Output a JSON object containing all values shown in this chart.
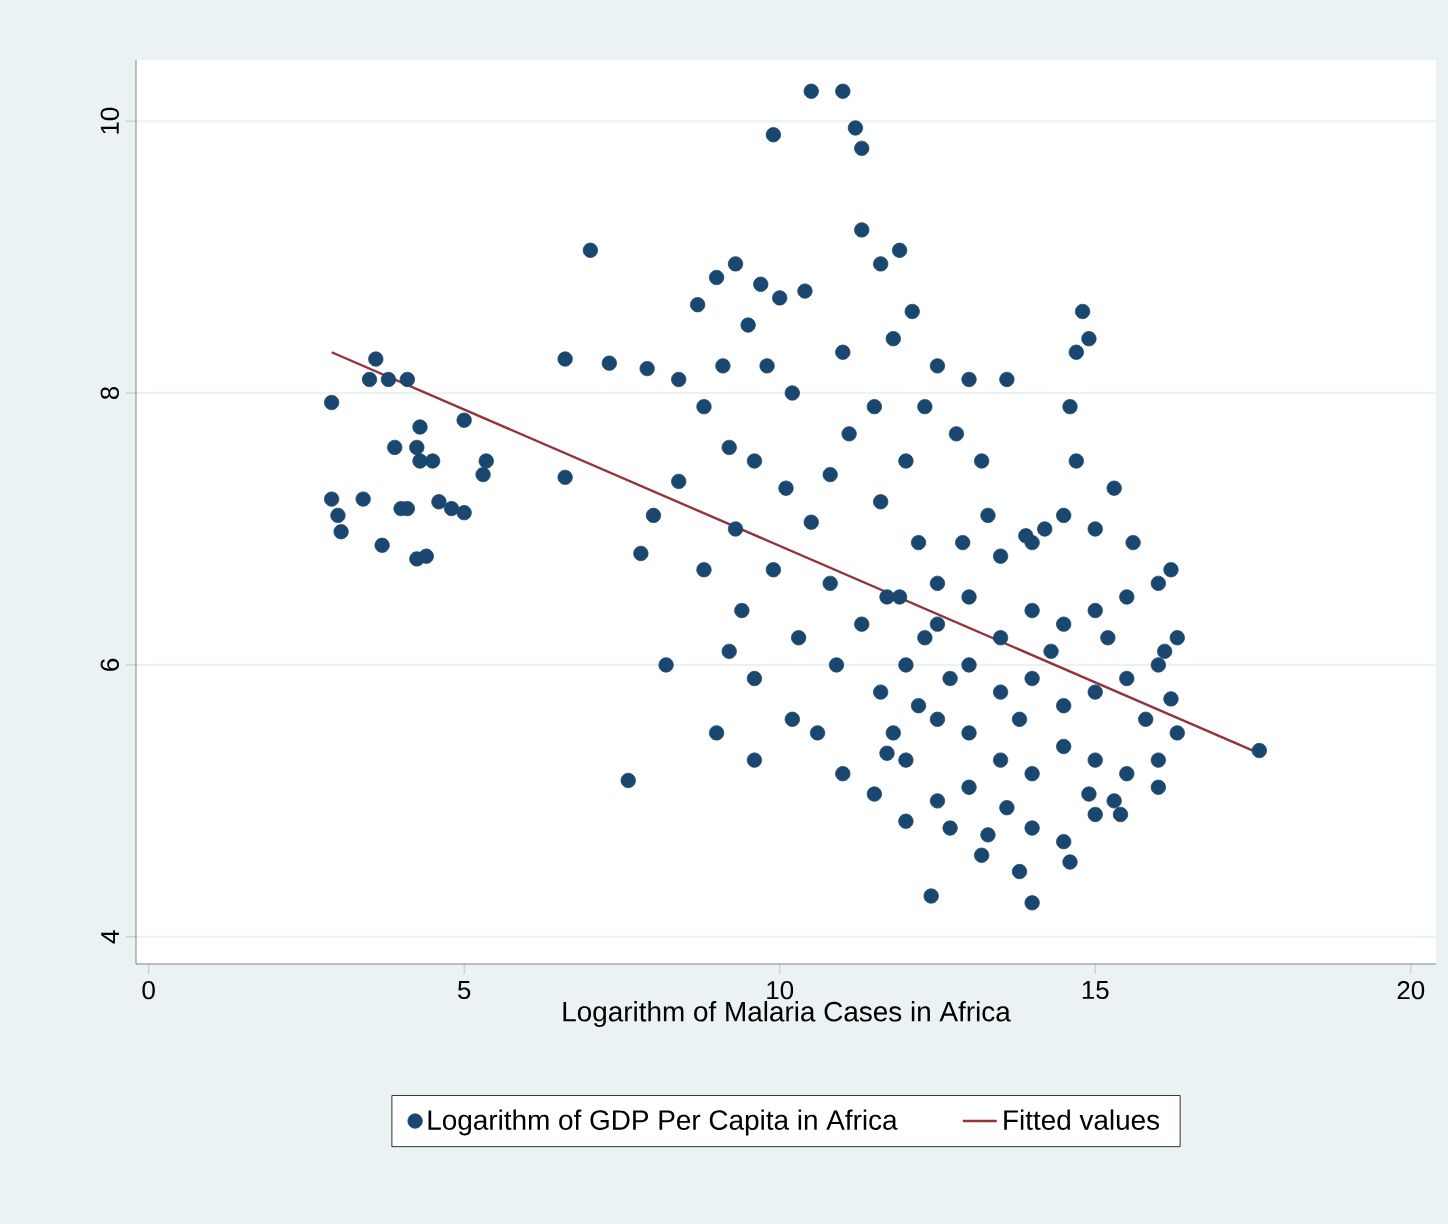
{
  "chart_data": {
    "type": "scatter",
    "xlabel": "Logarithm of Malaria Cases in Africa",
    "xlim": [
      -0.2,
      20.4
    ],
    "ylim": [
      3.8,
      10.45
    ],
    "xticks": [
      0,
      5,
      10,
      15,
      20
    ],
    "yticks": [
      4,
      6,
      8,
      10
    ],
    "grid": "y",
    "legend": "bottom",
    "marker": "circle",
    "series": [
      {
        "name": "Logarithm of GDP Per Capita in Africa",
        "color": "#1a476f",
        "x": [
          2.9,
          2.9,
          3.0,
          3.05,
          3.4,
          3.6,
          3.5,
          3.8,
          4.1,
          3.7,
          3.9,
          4.1,
          4.3,
          4.25,
          4.3,
          4.5,
          4.6,
          4.8,
          5.0,
          4.4,
          4.25,
          5.0,
          5.3,
          5.35,
          4.0,
          6.6,
          6.6,
          7.0,
          7.3,
          7.6,
          7.8,
          7.9,
          8.0,
          8.2,
          8.4,
          8.4,
          9.9,
          10.5,
          11.0,
          11.2,
          11.3,
          11.3,
          11.6,
          11.9,
          8.7,
          9.0,
          9.3,
          9.7,
          10.0,
          10.4,
          9.5,
          9.8,
          10.2,
          9.1,
          8.8,
          9.2,
          9.6,
          10.1,
          10.5,
          10.8,
          9.3,
          8.8,
          9.4,
          9.9,
          10.3,
          9.2,
          9.6,
          9.0,
          9.6,
          10.2,
          10.6,
          11.0,
          10.9,
          10.8,
          11.3,
          11.7,
          11.1,
          11.5,
          11.0,
          11.8,
          12.1,
          12.3,
          12.5,
          13.0,
          12.8,
          13.2,
          13.6,
          12.0,
          11.6,
          12.2,
          12.5,
          11.6,
          11.8,
          12.0,
          12.5,
          13.0,
          13.5,
          14.0,
          14.5,
          15.0,
          13.0,
          13.5,
          14.0,
          14.5,
          15.0,
          15.5,
          16.0,
          12.5,
          13.0,
          13.5,
          14.0,
          14.5,
          15.0,
          15.5,
          16.0,
          16.3,
          12.0,
          12.5,
          13.0,
          13.5,
          14.0,
          14.5,
          15.0,
          15.5,
          16.0,
          12.7,
          13.3,
          14.0,
          14.5,
          15.0,
          15.3,
          12.4,
          13.8,
          14.0,
          14.6,
          13.2,
          12.0,
          11.5,
          11.7,
          14.8,
          14.9,
          14.7,
          14.6,
          14.7,
          15.3,
          15.6,
          16.1,
          16.2,
          16.3,
          16.0,
          15.4,
          14.2,
          13.9,
          13.3,
          12.9,
          12.3,
          11.9,
          12.7,
          13.8,
          14.3,
          15.2,
          15.8,
          16.2,
          12.2,
          13.6,
          14.9,
          17.6
        ],
        "values": [
          7.93,
          7.22,
          7.1,
          6.98,
          7.22,
          8.25,
          8.1,
          8.1,
          8.1,
          6.88,
          7.6,
          7.15,
          7.75,
          7.6,
          7.5,
          7.5,
          7.2,
          7.15,
          7.12,
          6.8,
          6.78,
          7.8,
          7.4,
          7.5,
          7.15,
          7.38,
          8.25,
          9.05,
          8.22,
          5.15,
          6.82,
          8.18,
          7.1,
          6.0,
          7.35,
          8.1,
          9.9,
          10.22,
          10.22,
          9.95,
          9.8,
          9.2,
          8.95,
          9.05,
          8.65,
          8.85,
          8.95,
          8.8,
          8.7,
          8.75,
          8.5,
          8.2,
          8.0,
          8.2,
          7.9,
          7.6,
          7.5,
          7.3,
          7.05,
          7.4,
          7.0,
          6.7,
          6.4,
          6.7,
          6.2,
          6.1,
          5.9,
          5.5,
          5.3,
          5.6,
          5.5,
          5.2,
          6.0,
          6.6,
          6.3,
          6.5,
          7.7,
          7.9,
          8.3,
          8.4,
          8.6,
          7.9,
          8.2,
          8.1,
          7.7,
          7.5,
          8.1,
          7.5,
          7.2,
          6.9,
          6.6,
          5.8,
          5.5,
          6.0,
          6.3,
          6.5,
          6.8,
          6.9,
          7.1,
          7.0,
          6.0,
          6.2,
          6.4,
          6.3,
          6.4,
          6.5,
          6.6,
          5.6,
          5.5,
          5.8,
          5.9,
          5.7,
          5.8,
          5.9,
          6.0,
          6.2,
          5.3,
          5.0,
          5.1,
          5.3,
          5.2,
          5.4,
          5.3,
          5.2,
          5.3,
          4.8,
          4.75,
          4.8,
          4.7,
          4.9,
          5.0,
          4.3,
          4.48,
          4.25,
          4.55,
          4.6,
          4.85,
          5.05,
          5.35,
          8.6,
          8.4,
          8.3,
          7.9,
          7.5,
          7.3,
          6.9,
          6.1,
          5.75,
          5.5,
          5.1,
          4.9,
          7.0,
          6.95,
          7.1,
          6.9,
          6.2,
          6.5,
          5.9,
          5.6,
          6.1,
          6.2,
          5.6,
          6.7,
          5.7,
          4.95,
          5.05,
          5.37
        ]
      },
      {
        "name": "Fitted values",
        "type": "line",
        "color": "#90353b",
        "marker": "none",
        "line_style": "solid",
        "x": [
          2.9,
          17.6
        ],
        "values": [
          8.3,
          5.35
        ]
      }
    ]
  }
}
